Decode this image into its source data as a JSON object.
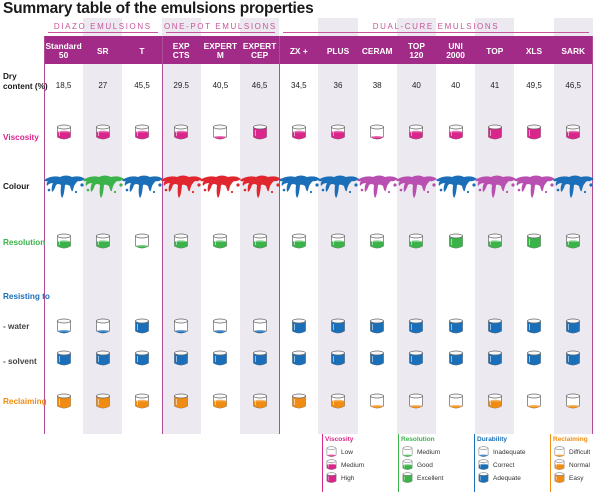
{
  "title": "Summary table of the emulsions properties",
  "groups": [
    {
      "name": "DIAZO EMULSIONS",
      "start": 0,
      "end": 3
    },
    {
      "name": "ONE-POT EMULSIONS",
      "start": 3,
      "end": 6
    },
    {
      "name": "DUAL-CURE EMULSIONS",
      "start": 6,
      "end": 14
    }
  ],
  "columns": [
    {
      "name": "Standard\n50",
      "dry": "18,5",
      "colour": "blue",
      "viscosity": "medium",
      "resolution": "good",
      "water": "inadequate",
      "solvent": "adequate",
      "reclaiming": "easy"
    },
    {
      "name": "SR",
      "dry": "27",
      "colour": "green",
      "viscosity": "medium",
      "resolution": "good",
      "water": "inadequate",
      "solvent": "adequate",
      "reclaiming": "easy"
    },
    {
      "name": "T",
      "dry": "45,5",
      "colour": "blue",
      "viscosity": "medium",
      "resolution": "medium",
      "water": "adequate",
      "solvent": "adequate",
      "reclaiming": "normal"
    },
    {
      "name": "EXP\nCTS",
      "dry": "29.5",
      "colour": "red",
      "viscosity": "medium",
      "resolution": "good",
      "water": "inadequate",
      "solvent": "adequate",
      "reclaiming": "easy"
    },
    {
      "name": "EXPERT\nM",
      "dry": "40,5",
      "colour": "red",
      "viscosity": "low",
      "resolution": "good",
      "water": "inadequate",
      "solvent": "adequate",
      "reclaiming": "normal"
    },
    {
      "name": "EXPERT\nCEP",
      "dry": "46,5",
      "colour": "red",
      "viscosity": "high",
      "resolution": "good",
      "water": "inadequate",
      "solvent": "adequate",
      "reclaiming": "normal"
    },
    {
      "name": "ZX +",
      "dry": "34,5",
      "colour": "blue",
      "viscosity": "medium",
      "resolution": "good",
      "water": "adequate",
      "solvent": "adequate",
      "reclaiming": "easy"
    },
    {
      "name": "PLUS",
      "dry": "36",
      "colour": "blue",
      "viscosity": "medium",
      "resolution": "good",
      "water": "adequate",
      "solvent": "adequate",
      "reclaiming": "normal"
    },
    {
      "name": "CERAM",
      "dry": "38",
      "colour": "magenta",
      "viscosity": "low",
      "resolution": "good",
      "water": "adequate",
      "solvent": "adequate",
      "reclaiming": "difficult"
    },
    {
      "name": "TOP\n120",
      "dry": "40",
      "colour": "magenta",
      "viscosity": "medium",
      "resolution": "good",
      "water": "adequate",
      "solvent": "adequate",
      "reclaiming": "difficult"
    },
    {
      "name": "UNI\n2000",
      "dry": "40",
      "colour": "blue",
      "viscosity": "medium",
      "resolution": "excellent",
      "water": "adequate",
      "solvent": "adequate",
      "reclaiming": "difficult"
    },
    {
      "name": "TOP",
      "dry": "41",
      "colour": "magenta",
      "viscosity": "high",
      "resolution": "good",
      "water": "adequate",
      "solvent": "adequate",
      "reclaiming": "normal"
    },
    {
      "name": "XLS",
      "dry": "49,5",
      "colour": "magenta",
      "viscosity": "high",
      "resolution": "excellent",
      "water": "adequate",
      "solvent": "adequate",
      "reclaiming": "difficult"
    },
    {
      "name": "SARK",
      "dry": "46,5",
      "colour": "blue",
      "viscosity": "medium",
      "resolution": "good",
      "water": "adequate",
      "solvent": "adequate",
      "reclaiming": "difficult"
    }
  ],
  "rows": {
    "dry": "Dry\ncontent (%)",
    "viscosity": "Viscosity",
    "colour": "Colour",
    "resolution": "Resolution",
    "resisting": "Resisting to",
    "water": "- water",
    "solvent": "- solvent",
    "reclaiming": "Reclaiming"
  },
  "legend": {
    "viscosity": {
      "title": "Viscosity",
      "items": [
        "Low",
        "Medium",
        "High"
      ]
    },
    "resolution": {
      "title": "Resolution",
      "items": [
        "Medium",
        "Good",
        "Excellent"
      ]
    },
    "durability": {
      "title": "Durability",
      "items": [
        "Inadequate",
        "Correct",
        "Adequate"
      ]
    },
    "reclaiming": {
      "title": "Reclaiming",
      "items": [
        "Difficult",
        "Normal",
        "Easy"
      ]
    }
  },
  "colors": {
    "magenta": "#d8268a",
    "green": "#3cb24a",
    "blue": "#1b6fb8",
    "orange": "#f08c14",
    "red": "#e0262e",
    "splat_magenta": "#b94fb0",
    "header": "#a12b87",
    "tint": "#ece9f0"
  }
}
